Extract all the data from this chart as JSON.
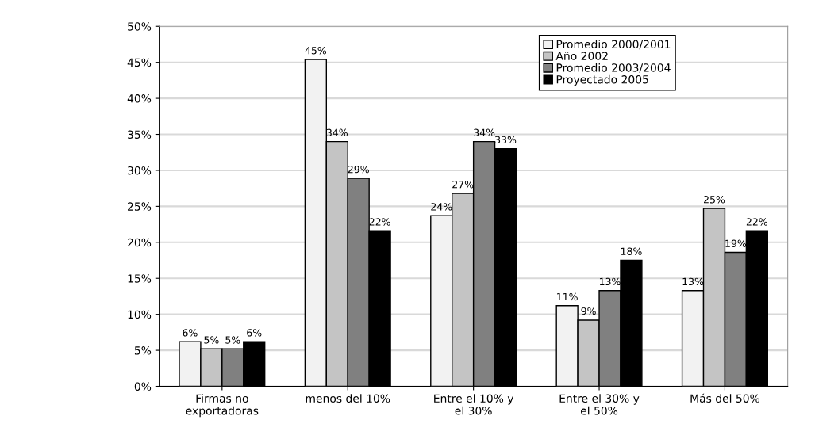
{
  "chart_data": {
    "type": "bar",
    "categories": [
      "Firmas no\nexportadoras",
      "menos del 10%",
      "Entre el 10% y\nel 30%",
      "Entre el 30% y\nel 50%",
      "Más del 50%"
    ],
    "series": [
      {
        "name": "Promedio 2000/2001",
        "color": "#f2f2f2",
        "values": [
          6.2,
          45.4,
          23.7,
          11.2,
          13.3
        ],
        "value_labels": [
          "6%",
          "45%",
          "24%",
          "11%",
          "13%"
        ]
      },
      {
        "name": "Año 2002",
        "color": "#c4c4c4",
        "values": [
          5.2,
          34.0,
          26.8,
          9.2,
          24.7
        ],
        "value_labels": [
          "5%",
          "34%",
          "27%",
          "9%",
          "25%"
        ]
      },
      {
        "name": "Promedio 2003/2004",
        "color": "#808080",
        "values": [
          5.2,
          28.9,
          34.0,
          13.3,
          18.6
        ],
        "value_labels": [
          "5%",
          "29%",
          "34%",
          "13%",
          "19%"
        ]
      },
      {
        "name": "Proyectado 2005",
        "color": "#000000",
        "values": [
          6.2,
          21.6,
          33.0,
          17.5,
          21.6
        ],
        "value_labels": [
          "6%",
          "22%",
          "33%",
          "18%",
          "22%"
        ]
      }
    ],
    "ylim": [
      0,
      50
    ],
    "yticks": [
      {
        "value": 0,
        "label": "0%"
      },
      {
        "value": 5,
        "label": "5%"
      },
      {
        "value": 10,
        "label": "10%"
      },
      {
        "value": 15,
        "label": "15%"
      },
      {
        "value": 20,
        "label": "20%"
      },
      {
        "value": 25,
        "label": "25%"
      },
      {
        "value": 30,
        "label": "30%"
      },
      {
        "value": 35,
        "label": "35%"
      },
      {
        "value": 40,
        "label": "40%"
      },
      {
        "value": 45,
        "label": "45%"
      },
      {
        "value": 50,
        "label": "50%"
      }
    ],
    "grid": "y",
    "legend": "top right"
  }
}
